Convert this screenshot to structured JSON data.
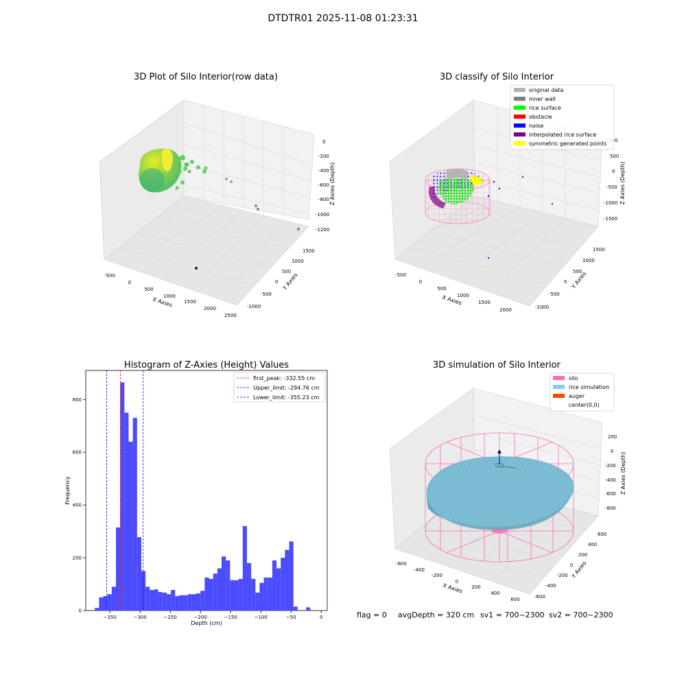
{
  "figure": {
    "title": "DTDTR01 2025-11-08 01:23:31",
    "status": {
      "flag": "flag = 0",
      "avg_depth": "avgDepth = 320 cm",
      "sv1": "sv1 = 700~2300",
      "sv2": "sv2 = 700~2300"
    }
  },
  "chart_data": [
    {
      "type": "scatter",
      "subtype": "3d",
      "title": "3D Plot of Silo Interior(row data)",
      "xlabel": "X Axies",
      "ylabel": "Y Axies",
      "zlabel": "Z Axies (Depth)",
      "x_ticks": [
        "-500",
        "0",
        "500",
        "1000",
        "1500",
        "2000",
        "2500"
      ],
      "y_ticks": [
        "1500",
        "1000",
        "500",
        "0",
        "-500",
        "-1000"
      ],
      "z_ticks": [
        "0",
        "-200",
        "-400",
        "-600",
        "-800",
        "-1000",
        "-1200"
      ],
      "xlim": [
        -600,
        2600
      ],
      "ylim": [
        -1100,
        1600
      ],
      "zlim": [
        -1300,
        50
      ],
      "colormap": "viridis (color by depth)",
      "points": [
        {
          "x": 1050,
          "y": 900,
          "z": -640,
          "color": "#8aa8c0"
        },
        {
          "x": 1150,
          "y": 850,
          "z": -660,
          "color": "#8aa8c0"
        },
        {
          "x": 1250,
          "y": 300,
          "z": -900,
          "color": "#6a8eb8"
        },
        {
          "x": 1300,
          "y": 250,
          "z": -920,
          "color": "#6a8eb8"
        },
        {
          "x": 2400,
          "y": -500,
          "z": -1200,
          "color": "#b060c0"
        },
        {
          "x": 1300,
          "y": -900,
          "z": -1250,
          "color": "#2a2a7a"
        }
      ]
    },
    {
      "type": "scatter",
      "subtype": "3d",
      "title": "3D classify of Silo Interior",
      "xlabel": "X Axies",
      "ylabel": "Y Axies",
      "zlabel": "Z Axies (Depth)",
      "x_ticks": [
        "-500",
        "0",
        "500",
        "1000",
        "1500",
        "2000"
      ],
      "y_ticks": [
        "1500",
        "1000",
        "500",
        "0",
        "-500",
        "-1000"
      ],
      "z_ticks": [
        "1000",
        "500",
        "0",
        "-500",
        "-1000",
        "-1500"
      ],
      "legend_position": "top-right",
      "legend": [
        {
          "label": "original data",
          "color": "#b3b3b3"
        },
        {
          "label": "inner wall",
          "color": "#808080"
        },
        {
          "label": "rice surface",
          "color": "#00ff00"
        },
        {
          "label": "obstacle",
          "color": "#ff0000"
        },
        {
          "label": "noise",
          "color": "#0000ff"
        },
        {
          "label": "interpolated rice surface",
          "color": "#800080"
        },
        {
          "label": "symmetric generated points",
          "color": "#ffff00"
        }
      ]
    },
    {
      "type": "bar",
      "subtype": "histogram",
      "title": "Histogram of Z-Axies (Height) Values",
      "xlabel": "Depth (cm)",
      "ylabel": "Frequency",
      "xlim": [
        -390,
        10
      ],
      "ylim": [
        0,
        910
      ],
      "x_ticks": [
        -350,
        -300,
        -250,
        -200,
        -150,
        -100,
        -50,
        0
      ],
      "y_ticks": [
        0,
        200,
        400,
        600,
        800
      ],
      "bar_color": "#4b4bff",
      "bin_start": -375,
      "bin_width": 7,
      "values": [
        10,
        50,
        55,
        62,
        90,
        315,
        865,
        750,
        640,
        730,
        278,
        150,
        90,
        78,
        80,
        70,
        68,
        62,
        78,
        55,
        58,
        58,
        62,
        62,
        65,
        75,
        125,
        120,
        140,
        160,
        205,
        190,
        115,
        115,
        120,
        320,
        180,
        120,
        68,
        105,
        125,
        125,
        190,
        160,
        200,
        230,
        262,
        15,
        0,
        0,
        12
      ],
      "reference_lines": [
        {
          "label": "first_peak: -332.55 cm",
          "x": -332.55,
          "color": "#ff0000"
        },
        {
          "label": "Upper_limit: -294.76 cm",
          "x": -294.76,
          "color": "#0000ff"
        },
        {
          "label": "Lower_limit: -355.23 cm",
          "x": -355.23,
          "color": "#0000ff"
        }
      ],
      "legend_position": "top-right"
    },
    {
      "type": "scatter",
      "subtype": "3d",
      "title": "3D simulation of Silo Interior",
      "xlabel": "X Axies",
      "ylabel": "Y Axies",
      "zlabel": "Z Axies (Depth)",
      "x_ticks": [
        "-600",
        "-400",
        "-200",
        "0",
        "200",
        "400",
        "600"
      ],
      "y_ticks": [
        "600",
        "400",
        "200",
        "0",
        "-200",
        "-400",
        "-600"
      ],
      "z_ticks": [
        "200",
        "0",
        "-200",
        "-400",
        "-600",
        "-800"
      ],
      "legend_position": "top-right",
      "legend": [
        {
          "label": "silo",
          "color": "#ff69b4"
        },
        {
          "label": "rice simulation",
          "color": "#87ceeb"
        },
        {
          "label": "auger",
          "color": "#ff4500"
        },
        {
          "label": "center(0,0)",
          "color": "#ffffff"
        }
      ]
    }
  ]
}
